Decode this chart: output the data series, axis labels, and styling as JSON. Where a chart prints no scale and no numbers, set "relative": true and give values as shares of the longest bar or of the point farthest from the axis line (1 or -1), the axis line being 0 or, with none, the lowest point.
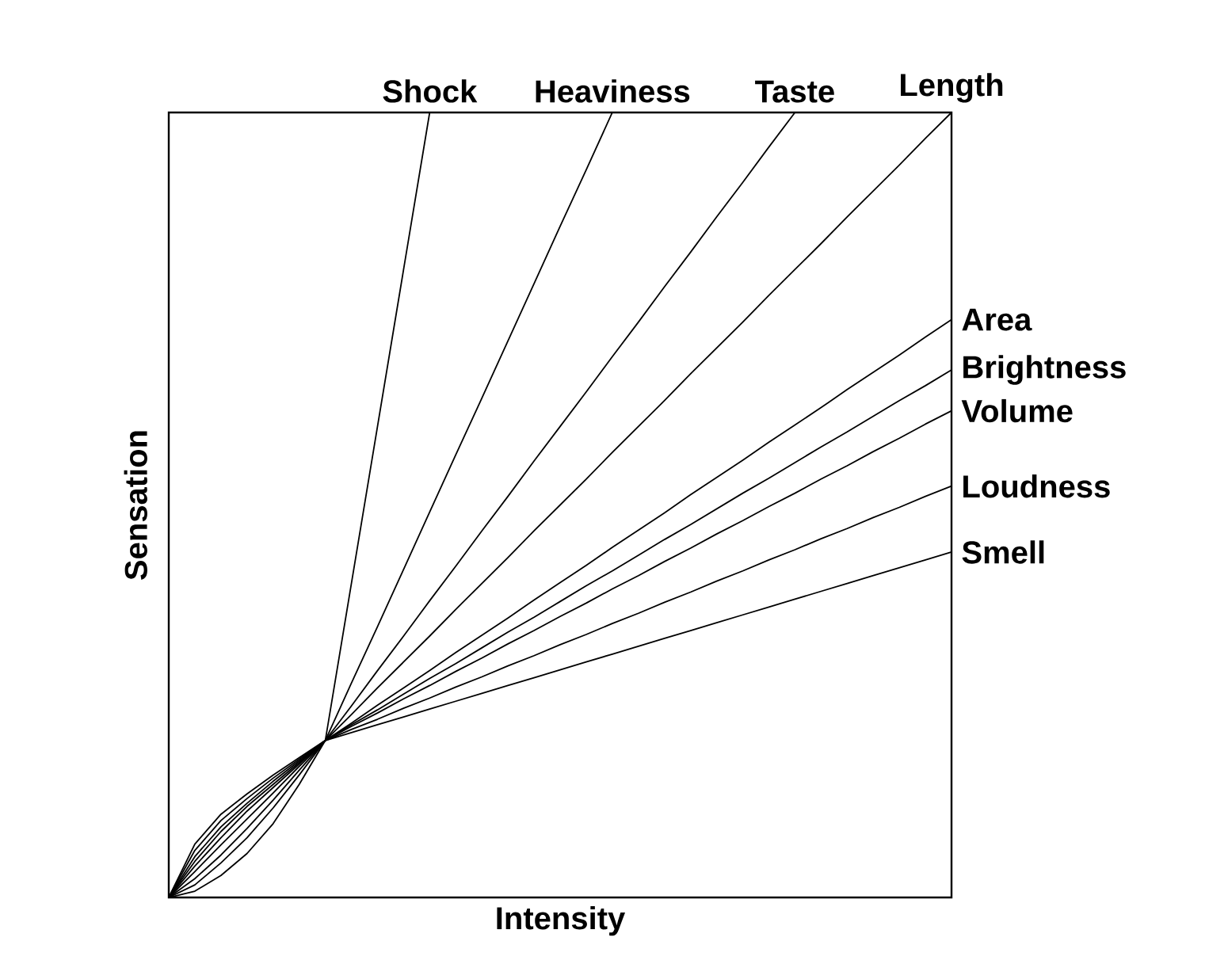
{
  "chart_data": {
    "type": "line",
    "relative": true,
    "xlabel": "Intensity",
    "ylabel": "Sensation",
    "legend": false,
    "categories": [
      null,
      null,
      null,
      null,
      null,
      null,
      null,
      null,
      null,
      null,
      null,
      null,
      null,
      null,
      null,
      null,
      null,
      null,
      null,
      null,
      null,
      null,
      null,
      null,
      null,
      null,
      null,
      null,
      null,
      null,
      null
    ],
    "series": [
      {
        "name": "Shock",
        "color": "#000000",
        "values": [
          0,
          0.008,
          0.028,
          0.056,
          0.094,
          0.144,
          0.2,
          0.4,
          0.6,
          0.8,
          1.0,
          null,
          null,
          null,
          null,
          null,
          null,
          null,
          null,
          null,
          null,
          null,
          null,
          null,
          null,
          null,
          null,
          null,
          null,
          null,
          null
        ]
      },
      {
        "name": "Heaviness",
        "color": "#000000",
        "values": [
          0,
          0.016,
          0.044,
          0.076,
          0.114,
          0.156,
          0.2,
          0.273,
          0.345,
          0.418,
          0.491,
          0.564,
          0.636,
          0.709,
          0.782,
          0.855,
          0.927,
          1.0,
          null,
          null,
          null,
          null,
          null,
          null,
          null,
          null,
          null,
          null,
          null,
          null,
          null
        ]
      },
      {
        "name": "Taste",
        "color": "#000000",
        "values": [
          0,
          0.024,
          0.054,
          0.088,
          0.124,
          0.162,
          0.2,
          0.244,
          0.289,
          0.333,
          0.378,
          0.422,
          0.467,
          0.511,
          0.556,
          0.6,
          0.644,
          0.689,
          0.733,
          0.778,
          0.822,
          0.867,
          0.911,
          0.956,
          1.0,
          null,
          null,
          null,
          null,
          null,
          null
        ]
      },
      {
        "name": "Length",
        "color": "#000000",
        "values": [
          0,
          0.033,
          0.067,
          0.1,
          0.133,
          0.167,
          0.2,
          0.233,
          0.267,
          0.3,
          0.333,
          0.367,
          0.4,
          0.433,
          0.467,
          0.5,
          0.533,
          0.567,
          0.6,
          0.633,
          0.667,
          0.7,
          0.733,
          0.767,
          0.8,
          0.833,
          0.867,
          0.9,
          0.933,
          0.967,
          1.0
        ]
      },
      {
        "name": "Area",
        "color": "#000000",
        "values": [
          0,
          0.04,
          0.076,
          0.11,
          0.14,
          0.17,
          0.2,
          0.222,
          0.245,
          0.267,
          0.289,
          0.312,
          0.334,
          0.356,
          0.379,
          0.401,
          0.423,
          0.446,
          0.468,
          0.49,
          0.513,
          0.535,
          0.557,
          0.58,
          0.602,
          0.624,
          0.647,
          0.669,
          0.691,
          0.714,
          0.736
        ]
      },
      {
        "name": "Brightness",
        "color": "#000000",
        "values": [
          0,
          0.046,
          0.084,
          0.116,
          0.144,
          0.172,
          0.2,
          0.22,
          0.239,
          0.259,
          0.279,
          0.298,
          0.318,
          0.338,
          0.357,
          0.377,
          0.397,
          0.416,
          0.436,
          0.456,
          0.475,
          0.495,
          0.515,
          0.534,
          0.554,
          0.574,
          0.593,
          0.613,
          0.633,
          0.652,
          0.672
        ]
      },
      {
        "name": "Volume",
        "color": "#000000",
        "values": [
          0,
          0.052,
          0.09,
          0.12,
          0.148,
          0.174,
          0.2,
          0.218,
          0.235,
          0.253,
          0.27,
          0.288,
          0.305,
          0.323,
          0.34,
          0.358,
          0.375,
          0.393,
          0.41,
          0.428,
          0.445,
          0.463,
          0.48,
          0.498,
          0.515,
          0.533,
          0.55,
          0.568,
          0.585,
          0.603,
          0.62
        ]
      },
      {
        "name": "Loudness",
        "color": "#000000",
        "values": [
          0,
          0.06,
          0.098,
          0.126,
          0.152,
          0.176,
          0.2,
          0.214,
          0.227,
          0.241,
          0.254,
          0.268,
          0.281,
          0.295,
          0.308,
          0.322,
          0.335,
          0.349,
          0.362,
          0.376,
          0.389,
          0.403,
          0.416,
          0.43,
          0.443,
          0.457,
          0.47,
          0.484,
          0.497,
          0.511,
          0.524
        ]
      },
      {
        "name": "Smell",
        "color": "#000000",
        "values": [
          0,
          0.068,
          0.106,
          0.132,
          0.156,
          0.178,
          0.2,
          0.21,
          0.22,
          0.23,
          0.24,
          0.25,
          0.26,
          0.27,
          0.28,
          0.29,
          0.3,
          0.31,
          0.32,
          0.33,
          0.34,
          0.35,
          0.36,
          0.37,
          0.38,
          0.39,
          0.4,
          0.41,
          0.42,
          0.43,
          0.44
        ]
      }
    ]
  }
}
